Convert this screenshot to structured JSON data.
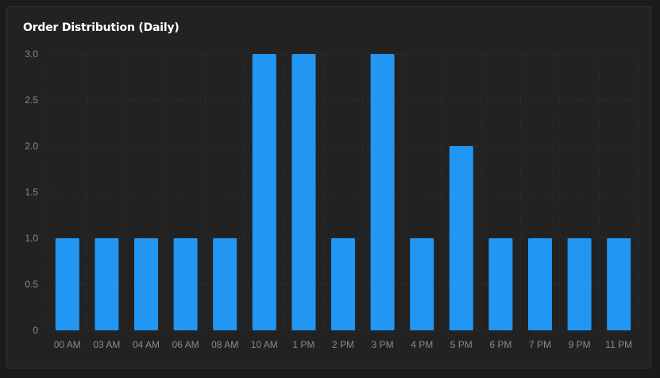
{
  "card": {
    "title": "Order Distribution (Daily)"
  },
  "colors": {
    "bar": "#2196f3",
    "grid": "#2e2e2e",
    "tick_text": "#8a8a8a",
    "background": "#222222"
  },
  "chart_data": {
    "type": "bar",
    "title": "Order Distribution (Daily)",
    "xlabel": "",
    "ylabel": "",
    "categories": [
      "00 AM",
      "03 AM",
      "04 AM",
      "06 AM",
      "08 AM",
      "10 AM",
      "1 PM",
      "2 PM",
      "3 PM",
      "4 PM",
      "5 PM",
      "6 PM",
      "7 PM",
      "9 PM",
      "11 PM"
    ],
    "values": [
      1,
      1,
      1,
      1,
      1,
      3,
      3,
      1,
      3,
      1,
      2,
      1,
      1,
      1,
      1
    ],
    "ylim": [
      0,
      3
    ],
    "yticks": [
      "0",
      "0.5",
      "1.0",
      "1.5",
      "2.0",
      "2.5",
      "3.0"
    ],
    "grid": true,
    "legend": "none"
  }
}
